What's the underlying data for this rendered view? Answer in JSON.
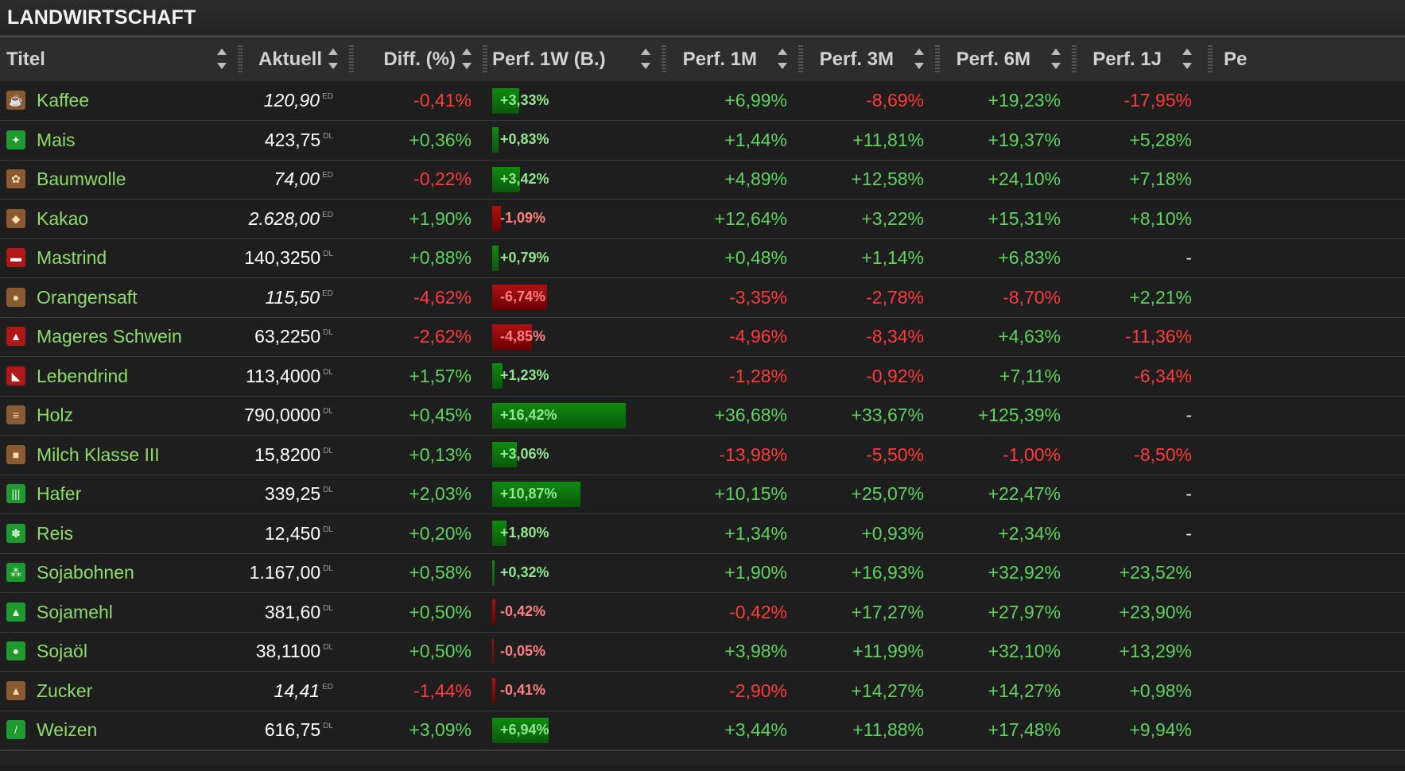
{
  "section_title": "LANDWIRTSCHAFT",
  "columns": {
    "titel": "Titel",
    "aktuell": "Aktuell",
    "diff": "Diff. (%)",
    "perf1w": "Perf. 1W (B.)",
    "perf1m": "Perf. 1M",
    "perf3m": "Perf. 3M",
    "perf6m": "Perf. 6M",
    "perf1j": "Perf. 1J",
    "extra": "Pe"
  },
  "colors": {
    "positive": "#5ed35e",
    "negative": "#ff3a3a",
    "name": "#8ddc6a"
  },
  "rows": [
    {
      "name": "Kaffee",
      "icon": "coffee-beans-icon",
      "price": "120,90",
      "exchange": "ED",
      "italic": true,
      "diff": "-0,41%",
      "w1": "+3,33%",
      "w1_pct": 3.33,
      "m1": "+6,99%",
      "m3": "-8,69%",
      "m6": "+19,23%",
      "j1": "-17,95%"
    },
    {
      "name": "Mais",
      "icon": "corn-icon",
      "price": "423,75",
      "exchange": "DL",
      "italic": false,
      "diff": "+0,36%",
      "w1": "+0,83%",
      "w1_pct": 0.83,
      "m1": "+1,44%",
      "m3": "+11,81%",
      "m6": "+19,37%",
      "j1": "+5,28%"
    },
    {
      "name": "Baumwolle",
      "icon": "cotton-icon",
      "price": "74,00",
      "exchange": "ED",
      "italic": true,
      "diff": "-0,22%",
      "w1": "+3,42%",
      "w1_pct": 3.42,
      "m1": "+4,89%",
      "m3": "+12,58%",
      "m6": "+24,10%",
      "j1": "+7,18%"
    },
    {
      "name": "Kakao",
      "icon": "cocoa-icon",
      "price": "2.628,00",
      "exchange": "ED",
      "italic": true,
      "diff": "+1,90%",
      "w1": "-1,09%",
      "w1_pct": -1.09,
      "m1": "+12,64%",
      "m3": "+3,22%",
      "m6": "+15,31%",
      "j1": "+8,10%"
    },
    {
      "name": "Mastrind",
      "icon": "cattle-icon",
      "price": "140,3250",
      "exchange": "DL",
      "italic": false,
      "diff": "+0,88%",
      "w1": "+0,79%",
      "w1_pct": 0.79,
      "m1": "+0,48%",
      "m3": "+1,14%",
      "m6": "+6,83%",
      "j1": "-"
    },
    {
      "name": "Orangensaft",
      "icon": "orange-icon",
      "price": "115,50",
      "exchange": "ED",
      "italic": true,
      "diff": "-4,62%",
      "w1": "-6,74%",
      "w1_pct": -6.74,
      "m1": "-3,35%",
      "m3": "-2,78%",
      "m6": "-8,70%",
      "j1": "+2,21%"
    },
    {
      "name": "Mageres Schwein",
      "icon": "pig-icon",
      "price": "63,2250",
      "exchange": "DL",
      "italic": false,
      "diff": "-2,62%",
      "w1": "-4,85%",
      "w1_pct": -4.85,
      "m1": "-4,96%",
      "m3": "-8,34%",
      "m6": "+4,63%",
      "j1": "-11,36%"
    },
    {
      "name": "Lebendrind",
      "icon": "live-cattle-icon",
      "price": "113,4000",
      "exchange": "DL",
      "italic": false,
      "diff": "+1,57%",
      "w1": "+1,23%",
      "w1_pct": 1.23,
      "m1": "-1,28%",
      "m3": "-0,92%",
      "m6": "+7,11%",
      "j1": "-6,34%"
    },
    {
      "name": "Holz",
      "icon": "lumber-icon",
      "price": "790,0000",
      "exchange": "DL",
      "italic": false,
      "diff": "+0,45%",
      "w1": "+16,42%",
      "w1_pct": 16.42,
      "m1": "+36,68%",
      "m3": "+33,67%",
      "m6": "+125,39%",
      "j1": "-"
    },
    {
      "name": "Milch Klasse III",
      "icon": "milk-icon",
      "price": "15,8200",
      "exchange": "DL",
      "italic": false,
      "diff": "+0,13%",
      "w1": "+3,06%",
      "w1_pct": 3.06,
      "m1": "-13,98%",
      "m3": "-5,50%",
      "m6": "-1,00%",
      "j1": "-8,50%"
    },
    {
      "name": "Hafer",
      "icon": "oats-icon",
      "price": "339,25",
      "exchange": "DL",
      "italic": false,
      "diff": "+2,03%",
      "w1": "+10,87%",
      "w1_pct": 10.87,
      "m1": "+10,15%",
      "m3": "+25,07%",
      "m6": "+22,47%",
      "j1": "-"
    },
    {
      "name": "Reis",
      "icon": "rice-icon",
      "price": "12,450",
      "exchange": "DL",
      "italic": false,
      "diff": "+0,20%",
      "w1": "+1,80%",
      "w1_pct": 1.8,
      "m1": "+1,34%",
      "m3": "+0,93%",
      "m6": "+2,34%",
      "j1": "-"
    },
    {
      "name": "Sojabohnen",
      "icon": "soybean-icon",
      "price": "1.167,00",
      "exchange": "DL",
      "italic": false,
      "diff": "+0,58%",
      "w1": "+0,32%",
      "w1_pct": 0.32,
      "m1": "+1,90%",
      "m3": "+16,93%",
      "m6": "+32,92%",
      "j1": "+23,52%"
    },
    {
      "name": "Sojamehl",
      "icon": "soymeal-icon",
      "price": "381,60",
      "exchange": "DL",
      "italic": false,
      "diff": "+0,50%",
      "w1": "-0,42%",
      "w1_pct": -0.42,
      "m1": "-0,42%",
      "m3": "+17,27%",
      "m6": "+27,97%",
      "j1": "+23,90%"
    },
    {
      "name": "Sojaöl",
      "icon": "soyoil-icon",
      "price": "38,1100",
      "exchange": "DL",
      "italic": false,
      "diff": "+0,50%",
      "w1": "-0,05%",
      "w1_pct": -0.05,
      "m1": "+3,98%",
      "m3": "+11,99%",
      "m6": "+32,10%",
      "j1": "+13,29%"
    },
    {
      "name": "Zucker",
      "icon": "sugar-icon",
      "price": "14,41",
      "exchange": "ED",
      "italic": true,
      "diff": "-1,44%",
      "w1": "-0,41%",
      "w1_pct": -0.41,
      "m1": "-2,90%",
      "m3": "+14,27%",
      "m6": "+14,27%",
      "j1": "+0,98%"
    },
    {
      "name": "Weizen",
      "icon": "wheat-icon",
      "price": "616,75",
      "exchange": "DL",
      "italic": false,
      "diff": "+3,09%",
      "w1": "+6,94%",
      "w1_pct": 6.94,
      "m1": "+3,44%",
      "m3": "+11,88%",
      "m6": "+17,48%",
      "j1": "+9,94%"
    }
  ]
}
